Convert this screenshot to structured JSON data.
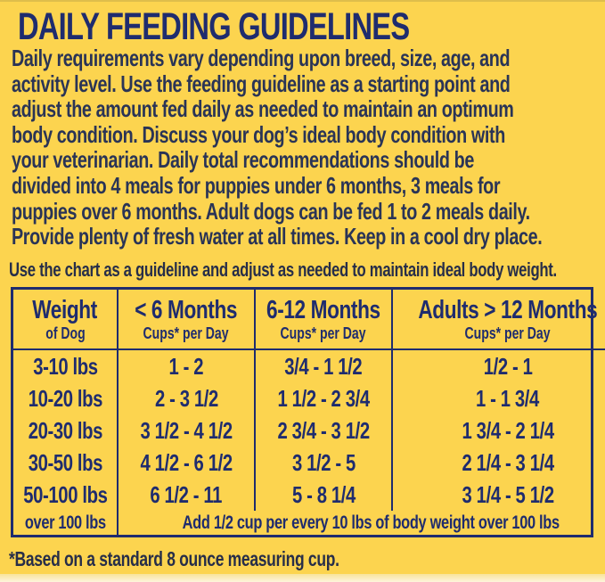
{
  "colors": {
    "background": "#FCD44F",
    "navy": "#1F2C6E",
    "body_text": "#2A3456"
  },
  "label": {
    "title": "DAILY FEEDING GUIDELINES",
    "intro_lines": [
      "Daily requirements vary depending upon breed, size, age, and",
      "activity level. Use the feeding guideline as a starting point and",
      "adjust the amount fed daily as needed to maintain an optimum",
      "body condition. Discuss your dog’s ideal body condition with",
      "your veterinarian. Daily total recommendations should be",
      "divided into 4 meals for puppies under 6 months, 3 meals for",
      "puppies over 6 months. Adult dogs can be fed 1 to 2 meals daily.",
      "Provide plenty of fresh water at all times. Keep in a cool dry place."
    ],
    "chart_note": "Use the chart as a guideline and adjust as needed to maintain ideal body weight.",
    "footnote": "*Based on a standard 8 ounce measuring cup."
  },
  "table": {
    "columns": [
      {
        "label": "Weight",
        "sublabel": "of Dog"
      },
      {
        "label": "< 6 Months",
        "sublabel": "Cups* per Day"
      },
      {
        "label": "6-12 Months",
        "sublabel": "Cups* per Day"
      },
      {
        "label": "Adults > 12 Months",
        "sublabel": "Cups* per Day"
      }
    ],
    "rows": [
      [
        "3-10 lbs",
        "1 - 2",
        "3/4 - 1 1/2",
        "1/2 - 1"
      ],
      [
        "10-20 lbs",
        "2 - 3 1/2",
        "1 1/2 - 2 3/4",
        "1 - 1 3/4"
      ],
      [
        "20-30 lbs",
        "3 1/2 - 4 1/2",
        "2 3/4 - 3 1/2",
        "1 3/4 - 2 1/4"
      ],
      [
        "30-50 lbs",
        "4 1/2 - 6 1/2",
        "3 1/2 - 5",
        "2 1/4 - 3 1/4"
      ],
      [
        "50-100 lbs",
        "6 1/2 - 11",
        "5 - 8 1/4",
        "3 1/4 - 5 1/2"
      ]
    ],
    "footer_row": {
      "weight": "over 100 lbs",
      "note": "Add 1/2 cup per every 10 lbs of body weight over 100 lbs"
    }
  }
}
